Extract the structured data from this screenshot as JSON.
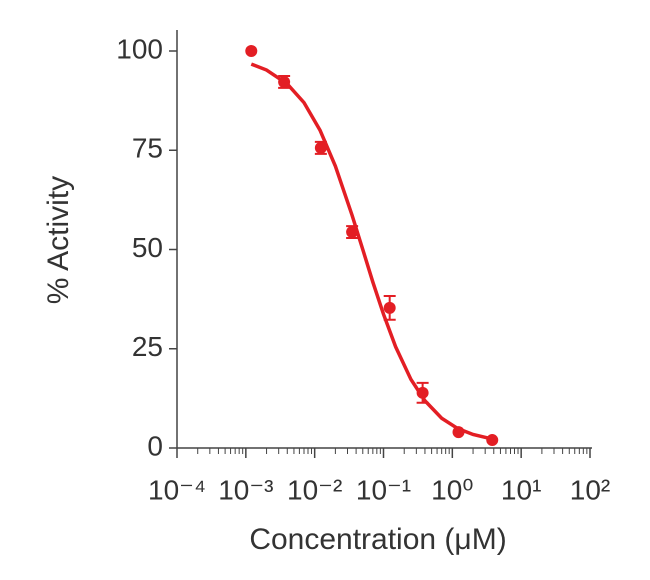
{
  "chart_data": {
    "type": "scatter",
    "xlabel": "Concentration (μM)",
    "ylabel": "% Activity",
    "log_x": true,
    "color": "#e31e24",
    "x": [
      0.0012,
      0.0036,
      0.0123,
      0.035,
      0.123,
      0.37,
      1.23,
      3.8
    ],
    "values": [
      100,
      92.2,
      75.6,
      54.4,
      35.3,
      13.9,
      4.0,
      2.0
    ],
    "errors": [
      0,
      1.5,
      1.5,
      1.5,
      3,
      2.5,
      0,
      0
    ],
    "fit": {
      "x": [
        0.0012,
        0.002,
        0.004,
        0.007,
        0.012,
        0.02,
        0.035,
        0.05,
        0.07,
        0.1,
        0.15,
        0.25,
        0.4,
        0.7,
        1.2,
        2,
        3.5
      ],
      "values": [
        96.7,
        95.2,
        91.7,
        87.0,
        80.0,
        71.0,
        58.6,
        50.0,
        41.8,
        33.7,
        25.5,
        17.3,
        11.9,
        7.5,
        4.9,
        3.4,
        2.4
      ]
    },
    "xlim": [
      0.0001,
      100
    ],
    "xticks": [
      {
        "value": 0.0001,
        "label": "10⁻⁴"
      },
      {
        "value": 0.001,
        "label": "10⁻³"
      },
      {
        "value": 0.01,
        "label": "10⁻²"
      },
      {
        "value": 0.1,
        "label": "10⁻¹"
      },
      {
        "value": 1,
        "label": "10⁰"
      },
      {
        "value": 10,
        "label": "10¹"
      },
      {
        "value": 100,
        "label": "10²"
      }
    ],
    "ylim": [
      0,
      100
    ],
    "yticks": [
      0,
      25,
      50,
      75,
      100
    ]
  }
}
